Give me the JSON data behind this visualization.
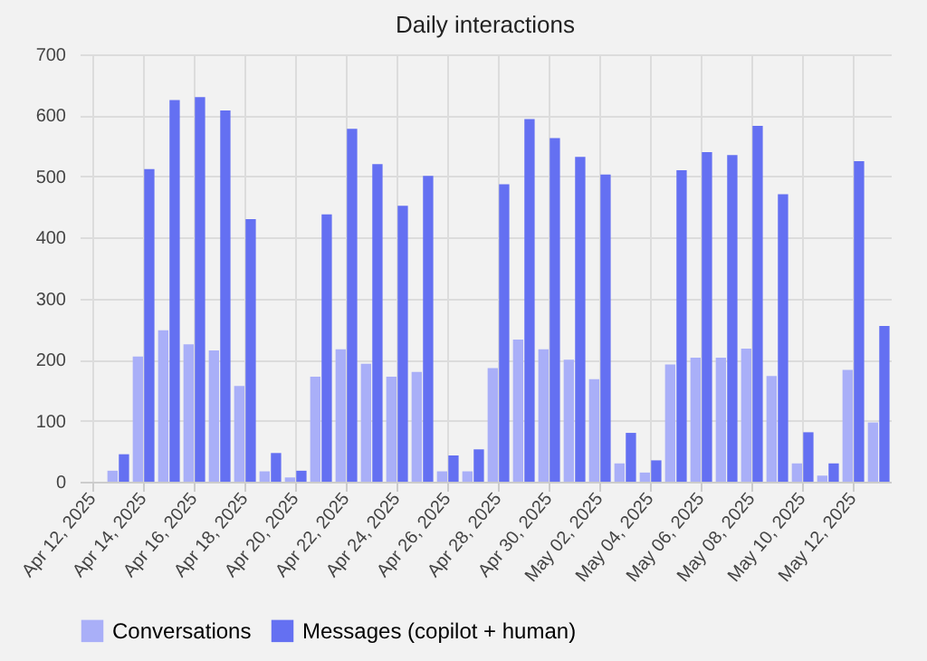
{
  "chart_data": {
    "type": "bar",
    "title": "Daily interactions",
    "categories": [
      "Apr 12, 2025",
      null,
      "Apr 14, 2025",
      null,
      "Apr 16, 2025",
      null,
      "Apr 18, 2025",
      null,
      "Apr 20, 2025",
      null,
      "Apr 22, 2025",
      null,
      "Apr 24, 2025",
      null,
      "Apr 26, 2025",
      null,
      "Apr 28, 2025",
      null,
      "Apr 30, 2025",
      null,
      "May 02, 2025",
      null,
      "May 04, 2025",
      null,
      "May 06, 2025",
      null,
      "May 08, 2025",
      null,
      "May 10, 2025",
      null,
      "May 12, 2025",
      null
    ],
    "series": [
      {
        "name": "Conversations",
        "color": "#a9aff8",
        "values": [
          null,
          18,
          205,
          248,
          225,
          215,
          157,
          17,
          7,
          172,
          217,
          193,
          172,
          180,
          17,
          17,
          186,
          233,
          217,
          200,
          168,
          30,
          15,
          192,
          203,
          203,
          218,
          173,
          30,
          10,
          183,
          97
        ]
      },
      {
        "name": "Messages (copilot + human)",
        "color": "#6470f2",
        "values": [
          null,
          45,
          512,
          625,
          630,
          608,
          430,
          47,
          18,
          438,
          578,
          520,
          452,
          501,
          43,
          53,
          487,
          594,
          563,
          532,
          503,
          80,
          35,
          510,
          540,
          535,
          583,
          471,
          81,
          30,
          525,
          255
        ]
      }
    ],
    "ylim": [
      0,
      700
    ],
    "yticks": [
      0,
      100,
      200,
      300,
      400,
      500,
      600,
      700
    ],
    "grid": true,
    "legend": "bottom"
  }
}
